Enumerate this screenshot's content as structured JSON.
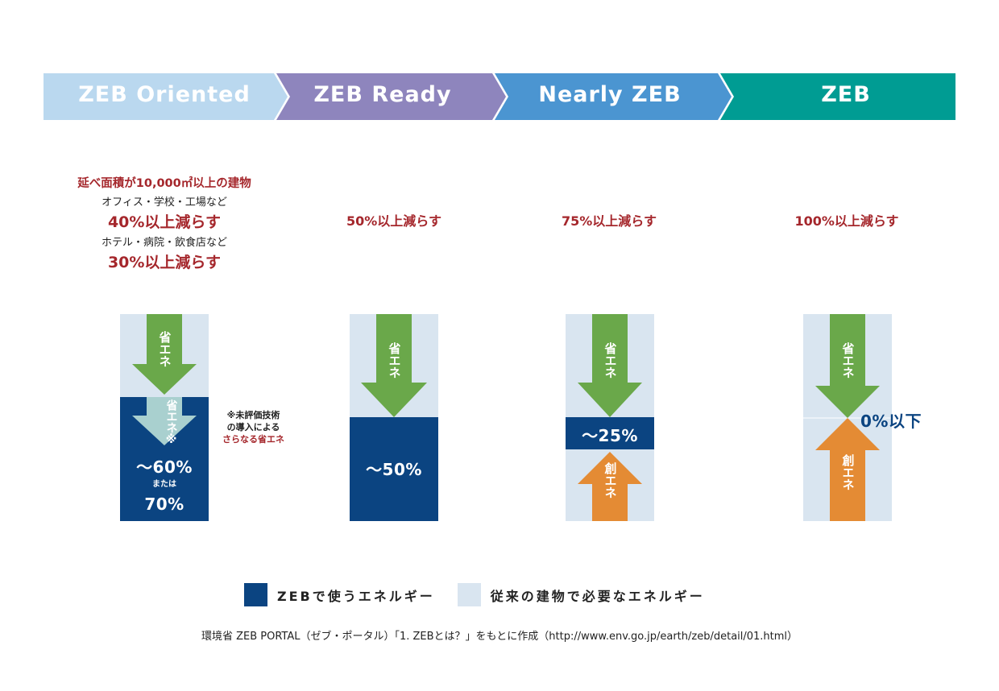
{
  "stages": [
    {
      "label": "ZEB Oriented",
      "color": "#bad8ef"
    },
    {
      "label": "ZEB Ready",
      "color": "#8e85bd"
    },
    {
      "label": "Nearly ZEB",
      "color": "#4b95d1"
    },
    {
      "label": "ZEB",
      "color": "#009c93"
    }
  ],
  "criteria": {
    "oriented": {
      "condition": "延べ面積が10,000㎡以上の建物",
      "group1": "オフィス・学校・工場など",
      "group1_reduction": "40%以上減らす",
      "group2": "ホテル・病院・飲食店など",
      "group2_reduction": "30%以上減らす"
    },
    "ready": "50%以上減らす",
    "nearly": "75%以上減らす",
    "zeb": "100%以上減らす"
  },
  "bars": {
    "save_label": "省エネ",
    "save_extra_label": "省エネ※",
    "create_label": "創エネ",
    "oriented_value": "～60%",
    "oriented_or": "または",
    "oriented_value2": "70%",
    "oriented_note_line1": "※未評価技術",
    "oriented_note_line2": "の導入による",
    "oriented_note_line3": "さらなる省エネ",
    "ready_value": "～50%",
    "nearly_value": "～25%",
    "zeb_value": "0%以下"
  },
  "colors": {
    "zeb_energy": "#0b4481",
    "conventional_energy": "#d9e5f0",
    "save_arrow": "#6aa84a",
    "extra_arrow": "#a9d0cf",
    "create_arrow": "#e48b34",
    "accent_red": "#a5272c"
  },
  "legend": [
    {
      "label": "ZEBで使うエネルギー",
      "color": "#0b4481"
    },
    {
      "label": "従来の建物で必要なエネルギー",
      "color": "#d9e5f0"
    }
  ],
  "source": "環境省 ZEB PORTAL（ゼブ・ポータル）「1. ZEBとは？」をもとに作成（http://www.env.go.jp/earth/zeb/detail/01.html）"
}
